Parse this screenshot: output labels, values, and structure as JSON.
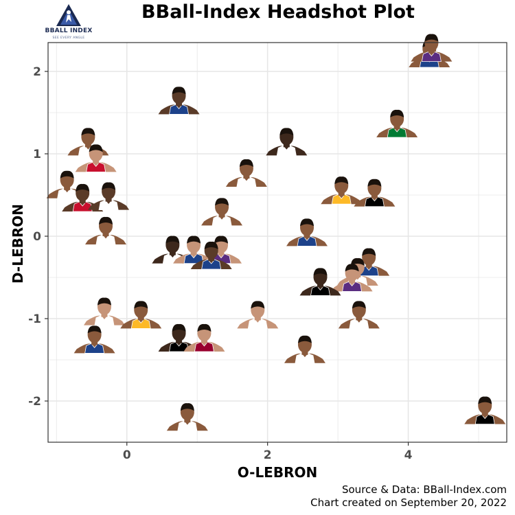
{
  "header": {
    "title": "BBall-Index Headshot Plot",
    "logo_name": "BBALL INDEX",
    "logo_tagline": "SEE EVERY ANGLE"
  },
  "footer": {
    "source": "Source & Data: BBall-Index.com",
    "created": "Chart created on September 20, 2022"
  },
  "colors": {
    "background": "#ffffff",
    "panel_border": "#333333",
    "grid": "#e6e6e6",
    "logo": "#1b2a52",
    "skin_tones": [
      "#5a3b28",
      "#8a5a3c",
      "#c69478",
      "#6e4630",
      "#3d281c"
    ],
    "jersey_colors": [
      "#1d428a",
      "#c8102e",
      "#000000",
      "#ffffff",
      "#007a33",
      "#fdb927",
      "#98002e",
      "#5a2d81",
      "#c4ced4"
    ]
  },
  "chart_data": {
    "type": "scatter",
    "title": "BBall-Index Headshot Plot",
    "xlabel": "O-LEBRON",
    "ylabel": "D-LEBRON",
    "xlim": [
      -1.12,
      5.4
    ],
    "ylim": [
      -2.5,
      2.35
    ],
    "xticks": [
      0,
      2,
      4
    ],
    "yticks": [
      2,
      1,
      0,
      -1,
      -2
    ],
    "xtick_labels": [
      "0",
      "2",
      "4"
    ],
    "ytick_labels": [
      "2",
      "1",
      "0",
      "-1",
      "-2"
    ],
    "grid": true,
    "marker": "player-headshot",
    "points": [
      {
        "x": 4.3,
        "y": 2.05,
        "skin": 1,
        "jersey": 0
      },
      {
        "x": 4.33,
        "y": 2.12,
        "skin": 1,
        "jersey": 7
      },
      {
        "x": 0.74,
        "y": 1.48,
        "skin": 0,
        "jersey": 0
      },
      {
        "x": 3.84,
        "y": 1.2,
        "skin": 1,
        "jersey": 4
      },
      {
        "x": 2.27,
        "y": 0.98,
        "skin": 4,
        "jersey": 3
      },
      {
        "x": -0.55,
        "y": 0.98,
        "skin": 1,
        "jersey": 3
      },
      {
        "x": -0.44,
        "y": 0.78,
        "skin": 2,
        "jersey": 1
      },
      {
        "x": -0.85,
        "y": 0.46,
        "skin": 1,
        "jersey": 3
      },
      {
        "x": -0.63,
        "y": 0.3,
        "skin": 0,
        "jersey": 1
      },
      {
        "x": -0.26,
        "y": 0.32,
        "skin": 0,
        "jersey": 3
      },
      {
        "x": 1.7,
        "y": 0.6,
        "skin": 1,
        "jersey": 3
      },
      {
        "x": 1.35,
        "y": 0.13,
        "skin": 1,
        "jersey": 3
      },
      {
        "x": 3.05,
        "y": 0.39,
        "skin": 1,
        "jersey": 5
      },
      {
        "x": 3.52,
        "y": 0.36,
        "skin": 1,
        "jersey": 2
      },
      {
        "x": -0.3,
        "y": -0.1,
        "skin": 1,
        "jersey": 3
      },
      {
        "x": 2.56,
        "y": -0.12,
        "skin": 1,
        "jersey": 0
      },
      {
        "x": 0.65,
        "y": -0.33,
        "skin": 4,
        "jersey": 3
      },
      {
        "x": 0.95,
        "y": -0.33,
        "skin": 2,
        "jersey": 0
      },
      {
        "x": 1.34,
        "y": -0.33,
        "skin": 2,
        "jersey": 7
      },
      {
        "x": 1.2,
        "y": -0.4,
        "skin": 0,
        "jersey": 0
      },
      {
        "x": 3.44,
        "y": -0.48,
        "skin": 1,
        "jersey": 0
      },
      {
        "x": 3.28,
        "y": -0.6,
        "skin": 2,
        "jersey": 3
      },
      {
        "x": 3.2,
        "y": -0.67,
        "skin": 2,
        "jersey": 7
      },
      {
        "x": 2.75,
        "y": -0.72,
        "skin": 4,
        "jersey": 2
      },
      {
        "x": -0.32,
        "y": -1.08,
        "skin": 2,
        "jersey": 3
      },
      {
        "x": 0.2,
        "y": -1.12,
        "skin": 1,
        "jersey": 5
      },
      {
        "x": 1.86,
        "y": -1.12,
        "skin": 2,
        "jersey": 3
      },
      {
        "x": 3.3,
        "y": -1.12,
        "skin": 1,
        "jersey": 3
      },
      {
        "x": 0.74,
        "y": -1.4,
        "skin": 4,
        "jersey": 2
      },
      {
        "x": 1.1,
        "y": -1.4,
        "skin": 2,
        "jersey": 6
      },
      {
        "x": -0.46,
        "y": -1.42,
        "skin": 1,
        "jersey": 0
      },
      {
        "x": 2.53,
        "y": -1.54,
        "skin": 1,
        "jersey": 3
      },
      {
        "x": 0.86,
        "y": -2.36,
        "skin": 1,
        "jersey": 3
      },
      {
        "x": 5.09,
        "y": -2.28,
        "skin": 1,
        "jersey": 2
      }
    ]
  }
}
